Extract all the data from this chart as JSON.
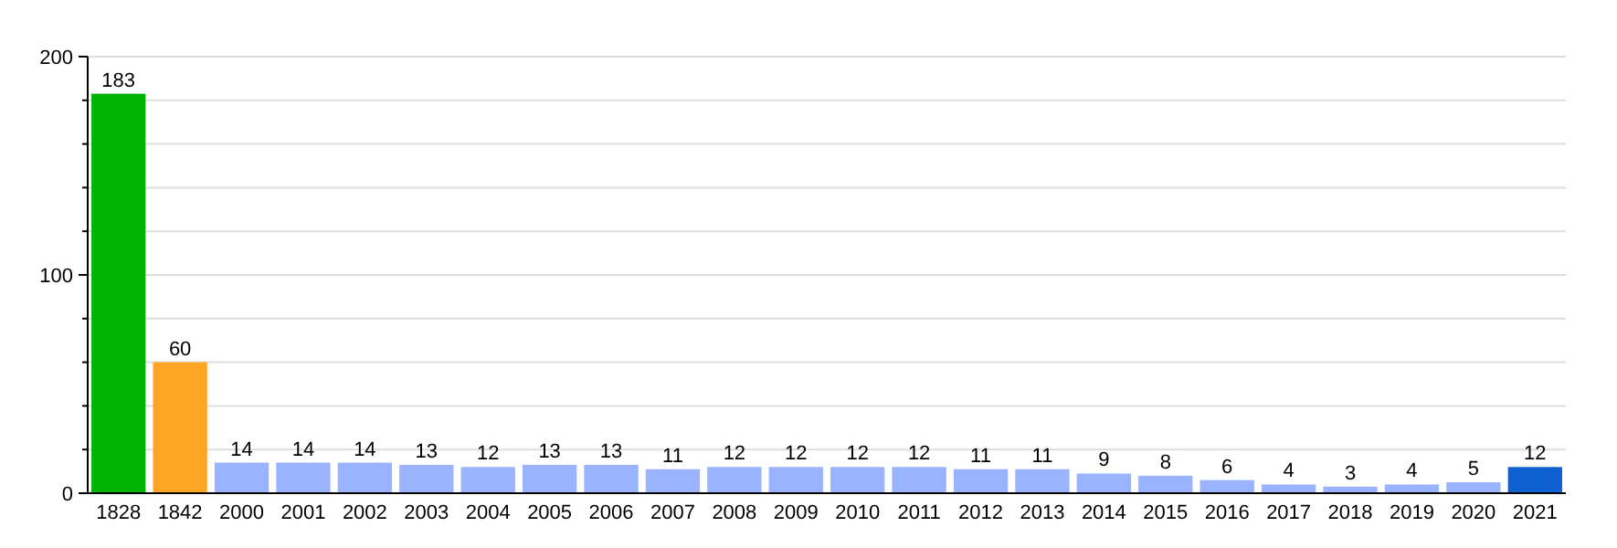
{
  "chart_data": {
    "type": "bar",
    "categories": [
      "1828",
      "1842",
      "2000",
      "2001",
      "2002",
      "2003",
      "2004",
      "2005",
      "2006",
      "2007",
      "2008",
      "2009",
      "2010",
      "2011",
      "2012",
      "2013",
      "2014",
      "2015",
      "2016",
      "2017",
      "2018",
      "2019",
      "2020",
      "2021"
    ],
    "values": [
      183,
      60,
      14,
      14,
      14,
      13,
      12,
      13,
      13,
      11,
      12,
      12,
      12,
      12,
      11,
      11,
      9,
      8,
      6,
      4,
      3,
      4,
      5,
      12
    ],
    "colors": [
      "#00b200",
      "#ffa526",
      "#99b3ff",
      "#99b3ff",
      "#99b3ff",
      "#99b3ff",
      "#99b3ff",
      "#99b3ff",
      "#99b3ff",
      "#99b3ff",
      "#99b3ff",
      "#99b3ff",
      "#99b3ff",
      "#99b3ff",
      "#99b3ff",
      "#99b3ff",
      "#99b3ff",
      "#99b3ff",
      "#99b3ff",
      "#99b3ff",
      "#99b3ff",
      "#99b3ff",
      "#99b3ff",
      "#0f61d2"
    ],
    "ylim": [
      0,
      200
    ],
    "yticks": [
      0,
      {
        "value": 20,
        "label": null
      },
      {
        "value": 40,
        "label": null
      },
      {
        "value": 60,
        "label": null
      },
      {
        "value": 80,
        "label": null
      },
      100,
      {
        "value": 120,
        "label": null
      },
      {
        "value": 140,
        "label": null
      },
      {
        "value": 160,
        "label": null
      },
      {
        "value": 180,
        "label": null
      },
      200
    ],
    "grid": true,
    "data_labels": true
  }
}
